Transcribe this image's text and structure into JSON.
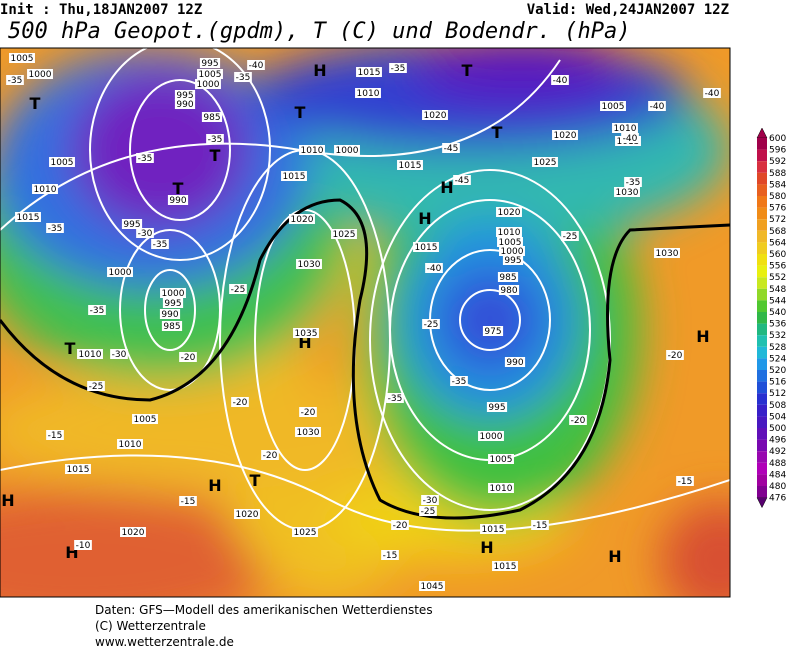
{
  "header": {
    "init": "Init : Thu,18JAN2007 12Z",
    "valid": "Valid: Wed,24JAN2007 12Z",
    "title": "500 hPa Geopot.(gpdm), T (C) und Bodendr. (hPa)"
  },
  "colorbar": {
    "levels": [
      600,
      596,
      592,
      588,
      584,
      580,
      576,
      572,
      568,
      564,
      560,
      556,
      552,
      548,
      544,
      540,
      536,
      532,
      528,
      524,
      520,
      516,
      512,
      508,
      504,
      500,
      496,
      492,
      488,
      484,
      480,
      476
    ],
    "colors": [
      "#a0004a",
      "#c0104a",
      "#d83040",
      "#e04828",
      "#e86020",
      "#f07818",
      "#f08c18",
      "#f0a020",
      "#f0b828",
      "#f0cc20",
      "#f0e010",
      "#e8f010",
      "#c8e820",
      "#90d828",
      "#50c830",
      "#30b848",
      "#20b880",
      "#20c0b0",
      "#20b8d8",
      "#2098e8",
      "#2070e0",
      "#2050d8",
      "#2830d0",
      "#3820c8",
      "#4818c0",
      "#6010b8",
      "#7808b0",
      "#9808b0",
      "#b000b8",
      "#a000a0",
      "#800090",
      "#580070"
    ]
  },
  "centers": [
    "H",
    "H",
    "H",
    "H",
    "H",
    "H",
    "H",
    "H",
    "H",
    "H",
    "T",
    "T",
    "T",
    "T",
    "T",
    "T",
    "T",
    "T"
  ],
  "isobar_labels": [
    1005,
    1000,
    995,
    1005,
    1000,
    995,
    990,
    985,
    990,
    1015,
    1010,
    1005,
    995,
    1000,
    1000,
    995,
    990,
    985,
    1010,
    1005,
    1010,
    1015,
    1020,
    1020,
    1025,
    1030,
    1035,
    1030,
    1025,
    1020,
    1015,
    1010,
    1000,
    1010,
    1015,
    1020,
    1015,
    1015,
    1010,
    1005,
    1000,
    995,
    985,
    980,
    975,
    990,
    995,
    1000,
    1005,
    1010,
    1015,
    1015,
    1020,
    1025,
    1030,
    1030,
    1010,
    1015,
    1005,
    1020,
    1045
  ],
  "temperature_labels": [
    -35,
    -35,
    -40,
    -35,
    -35,
    -30,
    -35,
    -35,
    -35,
    -30,
    -25,
    -20,
    -25,
    -20,
    -20,
    -20,
    -15,
    -15,
    -10,
    -45,
    -45,
    -40,
    -35,
    -25,
    -25,
    -40,
    -35,
    -40,
    -40,
    -20,
    -20,
    -15,
    -15,
    -15,
    -20,
    -25,
    -30,
    -35,
    -35,
    -40
  ],
  "footer": [
    "Daten: GFS—Modell des amerikanischen Wetterdienstes",
    "(C) Wetterzentrale",
    "www.wetterzentrale.de"
  ]
}
